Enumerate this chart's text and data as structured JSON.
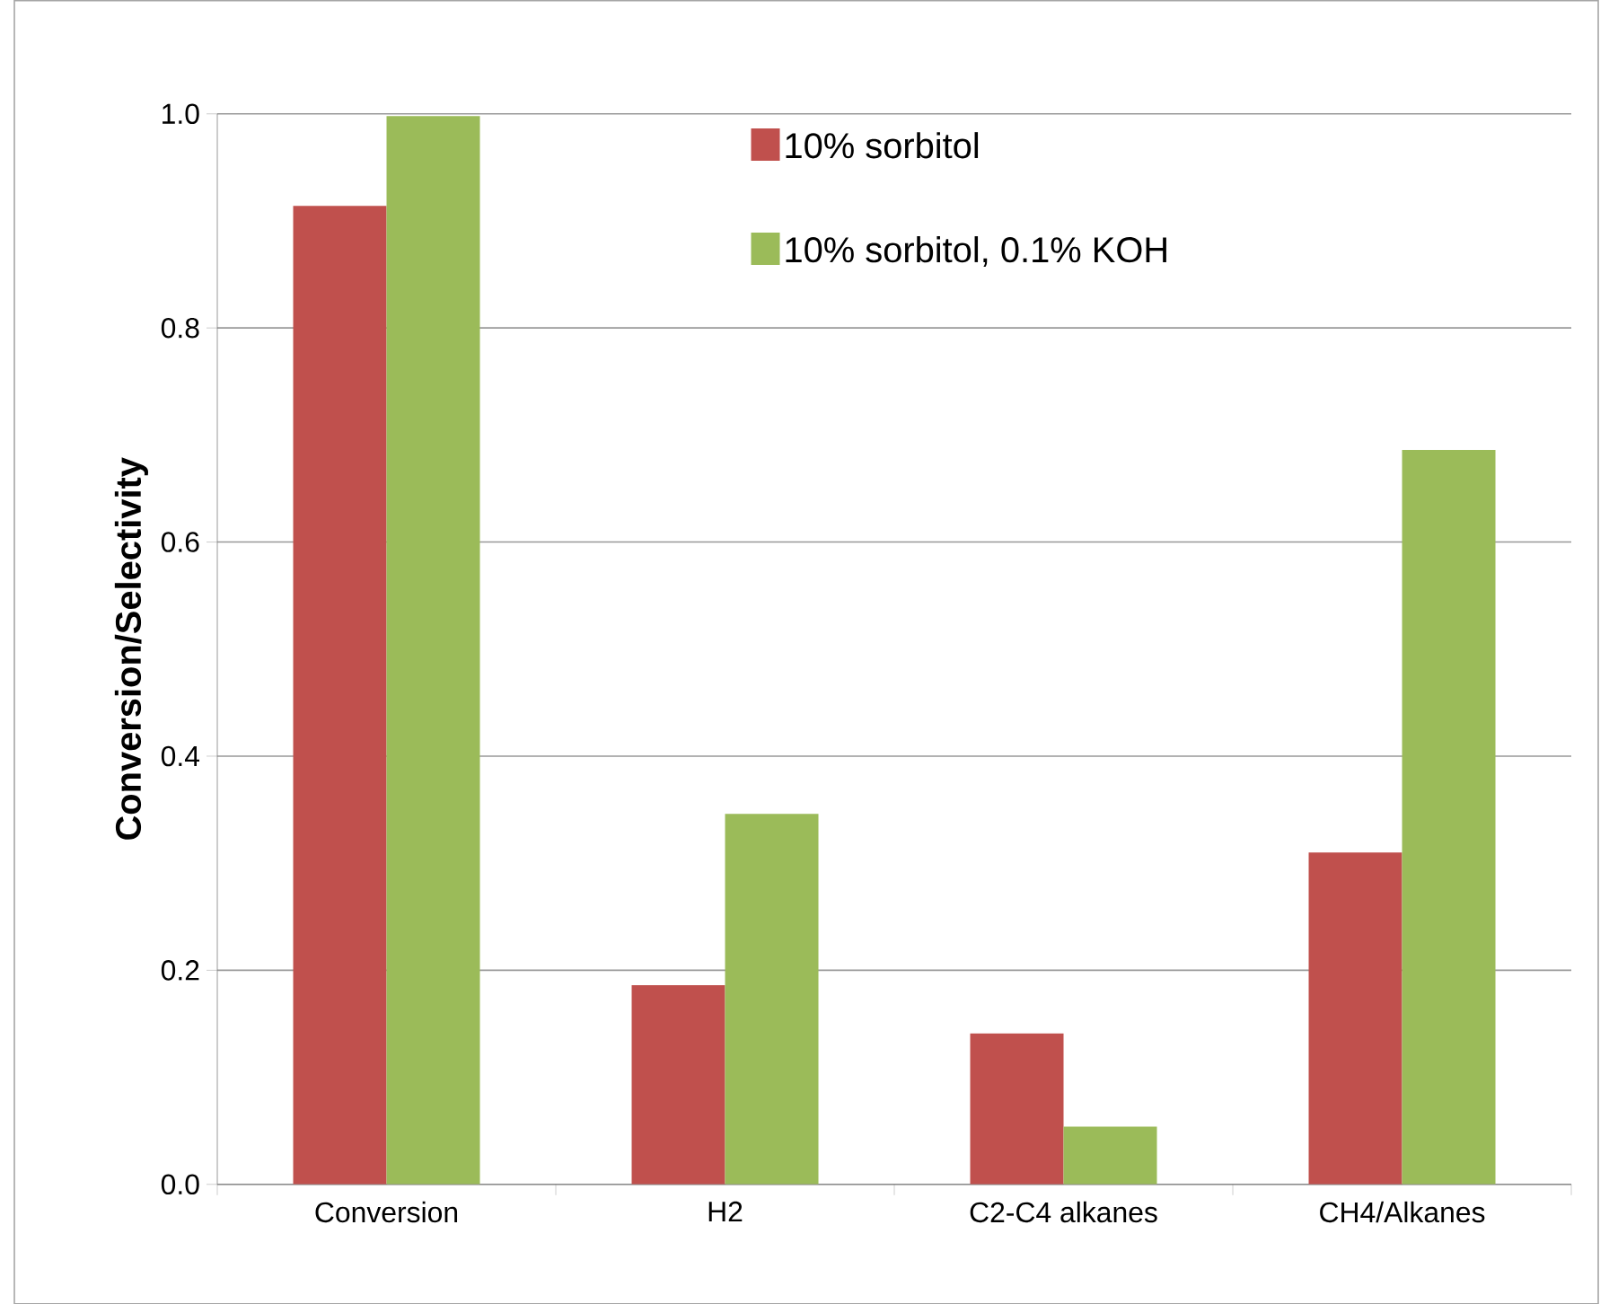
{
  "chart_data": {
    "type": "bar",
    "ylabel": "Conversion/Selectivity",
    "categories": [
      "Conversion",
      "H2",
      "C2-C4 alkanes",
      "CH4/Alkanes"
    ],
    "series": [
      {
        "name": "10% sorbitol",
        "color": "#c0504d",
        "values": [
          0.914,
          0.186,
          0.141,
          0.31
        ]
      },
      {
        "name": "10% sorbitol, 0.1% KOH",
        "color": "#9bbb59",
        "values": [
          0.998,
          0.346,
          0.054,
          0.686
        ]
      }
    ],
    "ylim": [
      0,
      1.0
    ],
    "yticks": [
      {
        "value": 0,
        "label": "0.0"
      },
      {
        "value": 0.2,
        "label": "0.2"
      },
      {
        "value": 0.4,
        "label": "0.4"
      },
      {
        "value": 0.6,
        "label": "0.6"
      },
      {
        "value": 0.8,
        "label": "0.8"
      },
      {
        "value": 1.0,
        "label": "1.0"
      }
    ],
    "grid": "y",
    "legend": "top right"
  }
}
